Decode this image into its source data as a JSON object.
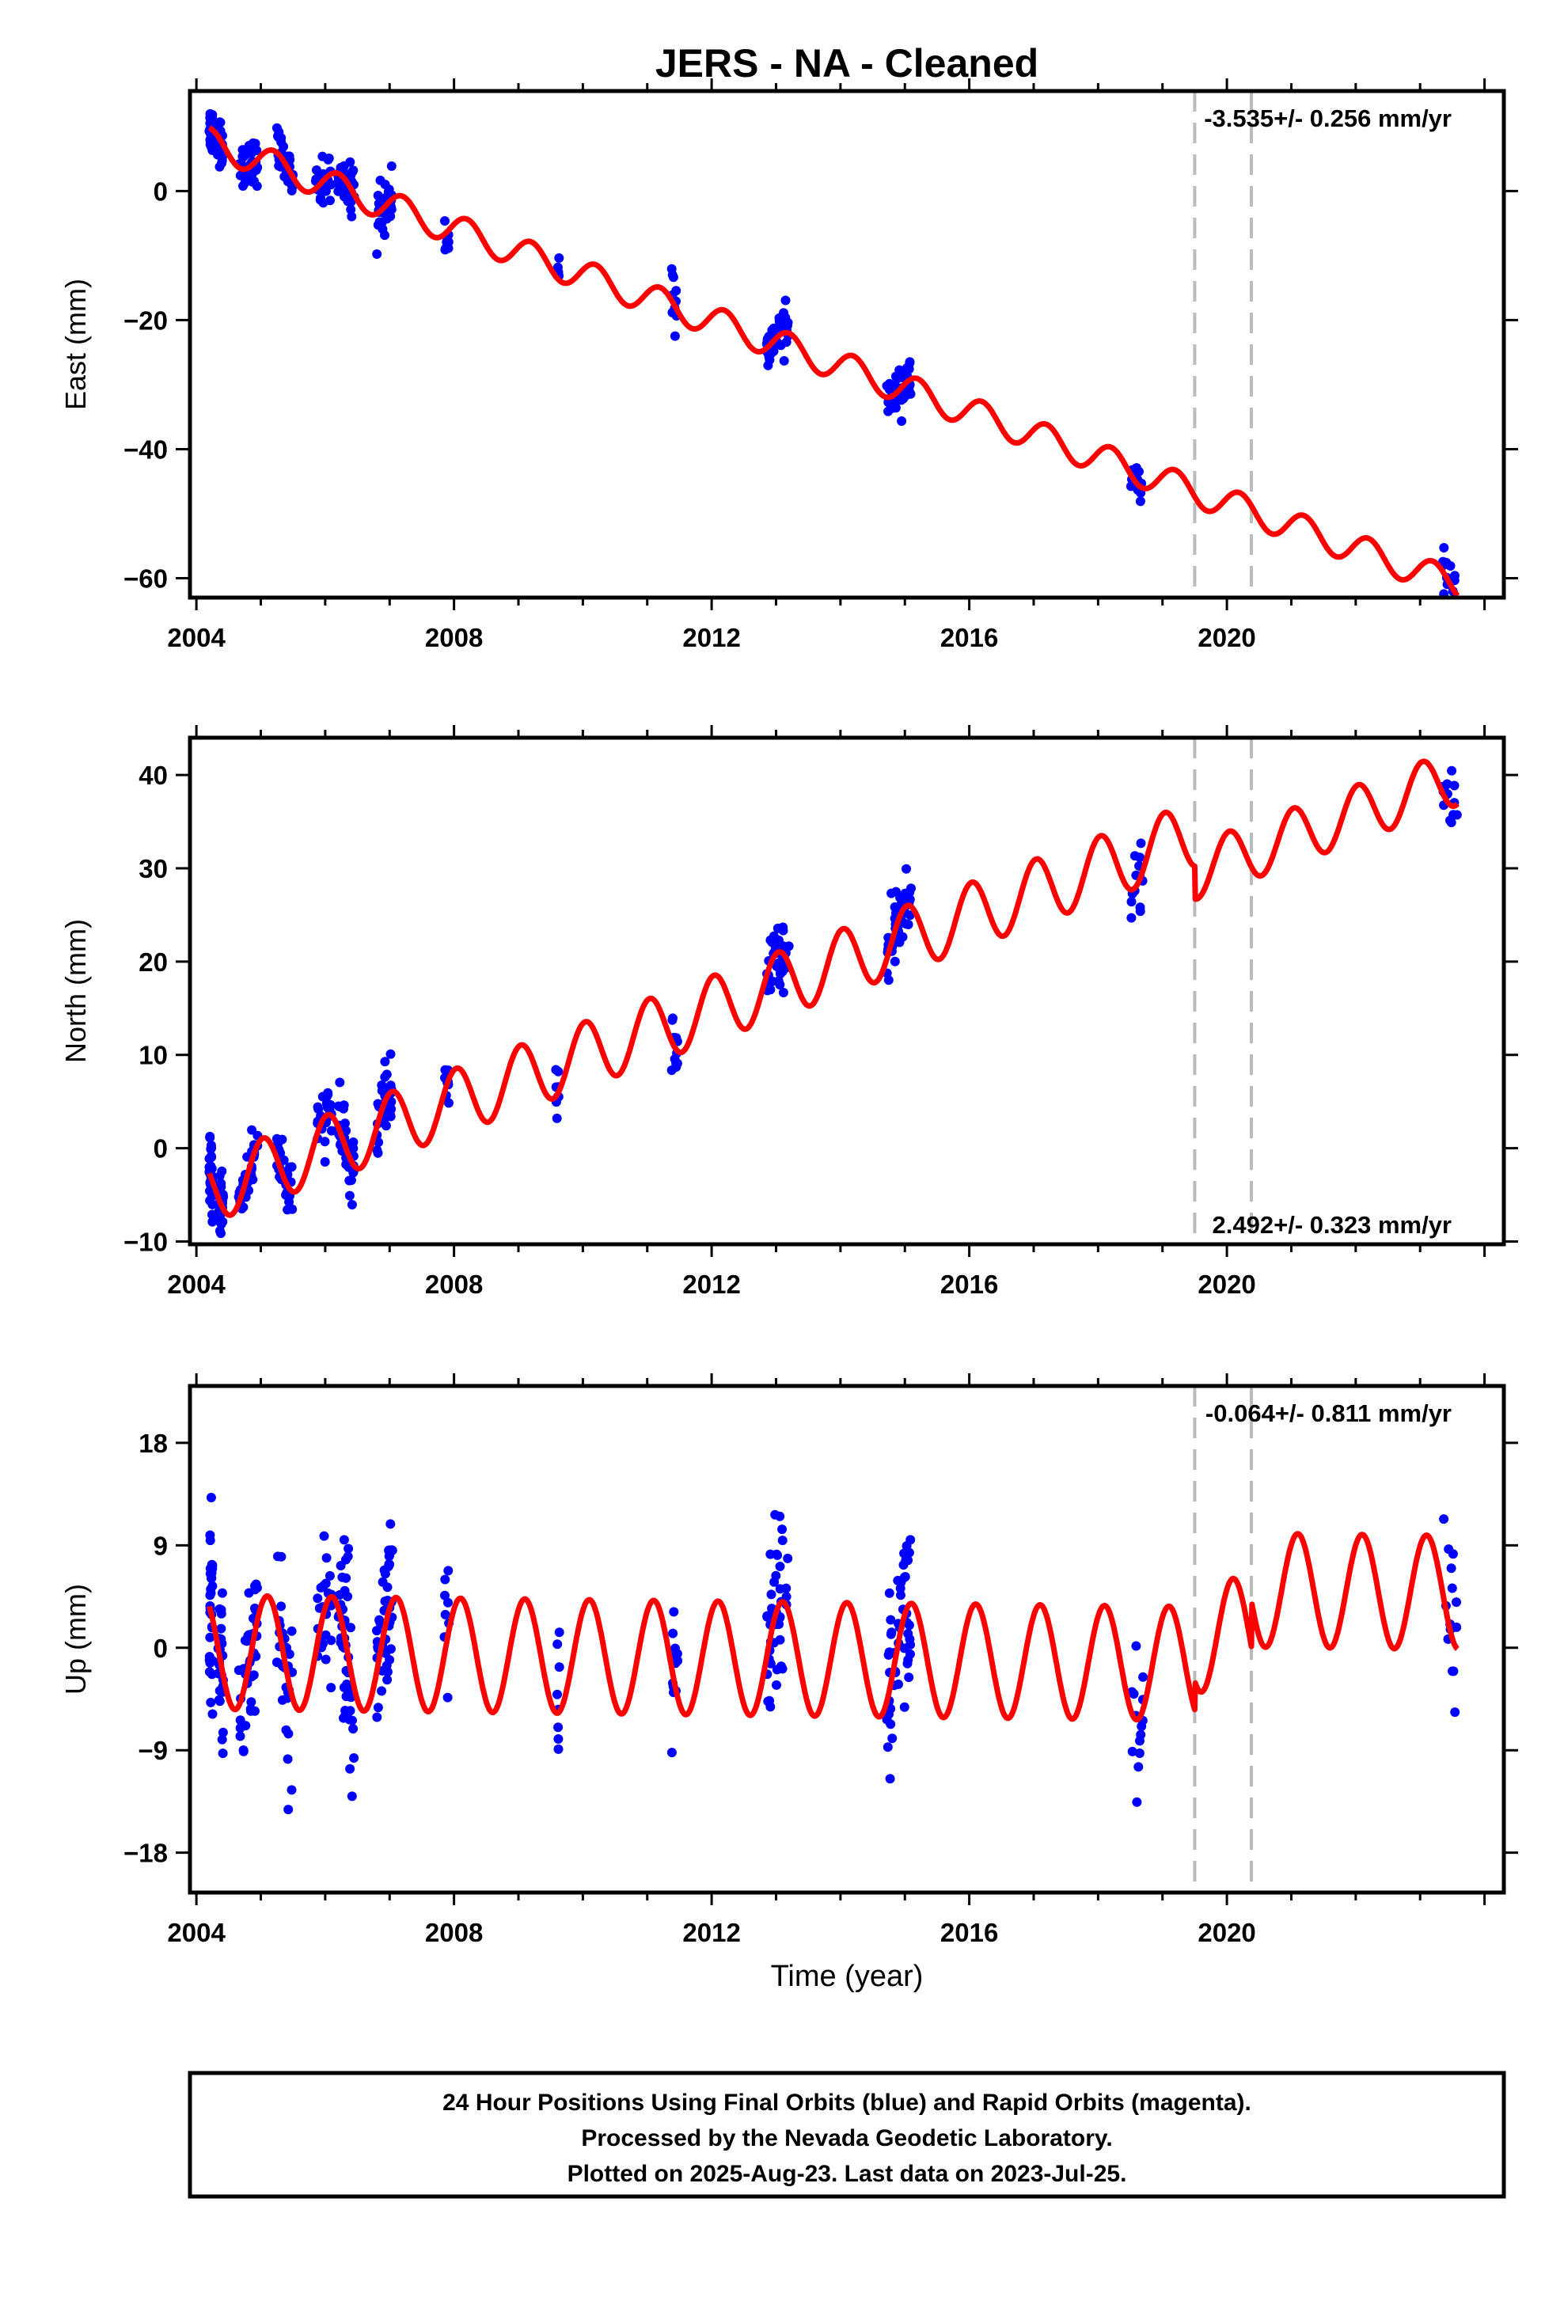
{
  "figure": {
    "title": "JERS  - NA - Cleaned",
    "xlabel": "Time (year)",
    "caption": [
      "24 Hour Positions Using Final Orbits (blue) and Rapid Orbits (magenta).",
      "Processed by the Nevada Geodetic Laboratory.",
      "Plotted on 2025-Aug-23. Last data on 2023-Jul-25."
    ],
    "colors": {
      "data": "#0000ff",
      "model": "#ff0000",
      "breaks": "#bbbbbb",
      "frame": "#000000"
    }
  },
  "chart_data": [
    {
      "type": "scatter",
      "component": "East",
      "ylabel": "East (mm)",
      "rate_text": "-3.535+/- 0.256 mm/yr",
      "rate_position": "top-right",
      "xlim": [
        2003.9,
        2024.3
      ],
      "ylim": [
        -63,
        15.5
      ],
      "xticks": [
        2004,
        2008,
        2012,
        2016,
        2020
      ],
      "yticks": [
        -60,
        -40,
        -20,
        0
      ],
      "breaks": [
        2019.5,
        2020.38
      ],
      "model": {
        "offset": 7.5,
        "rate": -3.535,
        "t0": 2004.2,
        "amp": 2.3,
        "phase": 1.6,
        "steps": [
          {
            "t": 2019.5,
            "dy": 0
          },
          {
            "t": 2020.38,
            "dy": 0
          }
        ],
        "amp_after": 2.3
      },
      "campaigns": [
        [
          2004.2,
          2004.25,
          30
        ],
        [
          2004.33,
          2004.42,
          25
        ],
        [
          2004.65,
          2004.95,
          40
        ],
        [
          2005.25,
          2005.5,
          30
        ],
        [
          2005.85,
          2006.1,
          25
        ],
        [
          2006.2,
          2006.45,
          45
        ],
        [
          2006.8,
          2007.05,
          45
        ],
        [
          2007.85,
          2007.92,
          8
        ],
        [
          2009.58,
          2009.65,
          8
        ],
        [
          2011.38,
          2011.48,
          12
        ],
        [
          2012.85,
          2013.2,
          45
        ],
        [
          2014.72,
          2015.1,
          50
        ],
        [
          2018.5,
          2018.7,
          14
        ],
        [
          2023.35,
          2023.58,
          14
        ]
      ],
      "noise": 1.8
    },
    {
      "type": "scatter",
      "component": "North",
      "ylabel": "North (mm)",
      "rate_text": "2.492+/- 0.323 mm/yr",
      "rate_position": "bottom-right",
      "xlim": [
        2003.9,
        2024.3
      ],
      "ylim": [
        -10.3,
        44
      ],
      "xticks": [
        2004,
        2008,
        2012,
        2016,
        2020
      ],
      "yticks": [
        -10,
        0,
        10,
        20,
        30,
        40
      ],
      "breaks": [
        2019.5,
        2020.38
      ],
      "model": {
        "offset": -4.5,
        "rate": 2.492,
        "t0": 2004.2,
        "amp": 3.5,
        "phase": 2.6,
        "steps": [
          {
            "t": 2019.5,
            "dy": -4.0
          },
          {
            "t": 2020.38,
            "dy": 0
          }
        ],
        "amp_after": 3.0
      },
      "campaigns": [
        [
          2004.2,
          2004.25,
          30
        ],
        [
          2004.33,
          2004.42,
          25
        ],
        [
          2004.65,
          2004.95,
          40
        ],
        [
          2005.25,
          2005.5,
          30
        ],
        [
          2005.85,
          2006.1,
          25
        ],
        [
          2006.2,
          2006.45,
          45
        ],
        [
          2006.8,
          2007.05,
          45
        ],
        [
          2007.85,
          2007.92,
          8
        ],
        [
          2009.58,
          2009.65,
          8
        ],
        [
          2011.38,
          2011.48,
          12
        ],
        [
          2012.85,
          2013.2,
          45
        ],
        [
          2014.72,
          2015.1,
          50
        ],
        [
          2018.5,
          2018.7,
          14
        ],
        [
          2023.35,
          2023.58,
          14
        ]
      ],
      "noise": 1.7
    },
    {
      "type": "scatter",
      "component": "Up",
      "ylabel": "Up (mm)",
      "rate_text": "-0.064+/- 0.811 mm/yr",
      "rate_position": "top-right",
      "xlim": [
        2003.9,
        2024.3
      ],
      "ylim": [
        -21.5,
        23
      ],
      "xticks": [
        2004,
        2008,
        2012,
        2016,
        2020
      ],
      "yticks": [
        -18,
        -9,
        0,
        9,
        18
      ],
      "breaks": [
        2019.5,
        2020.38
      ],
      "model": {
        "offset": -0.4,
        "rate": -0.064,
        "t0": 2004.2,
        "amp": 5.0,
        "phase": 2.2,
        "steps": [
          {
            "t": 2019.5,
            "dy": 2.5
          },
          {
            "t": 2020.38,
            "dy": 4.0
          }
        ],
        "amp_after": 5.0
      },
      "campaigns": [
        [
          2004.2,
          2004.25,
          30
        ],
        [
          2004.33,
          2004.42,
          25
        ],
        [
          2004.65,
          2004.95,
          40
        ],
        [
          2005.25,
          2005.5,
          30
        ],
        [
          2005.85,
          2006.1,
          25
        ],
        [
          2006.2,
          2006.45,
          45
        ],
        [
          2006.8,
          2007.05,
          45
        ],
        [
          2007.85,
          2007.92,
          8
        ],
        [
          2009.58,
          2009.65,
          8
        ],
        [
          2011.38,
          2011.48,
          12
        ],
        [
          2012.85,
          2013.2,
          45
        ],
        [
          2014.72,
          2015.1,
          50
        ],
        [
          2018.5,
          2018.7,
          14
        ],
        [
          2023.35,
          2023.58,
          14
        ]
      ],
      "noise": 4.0
    }
  ]
}
